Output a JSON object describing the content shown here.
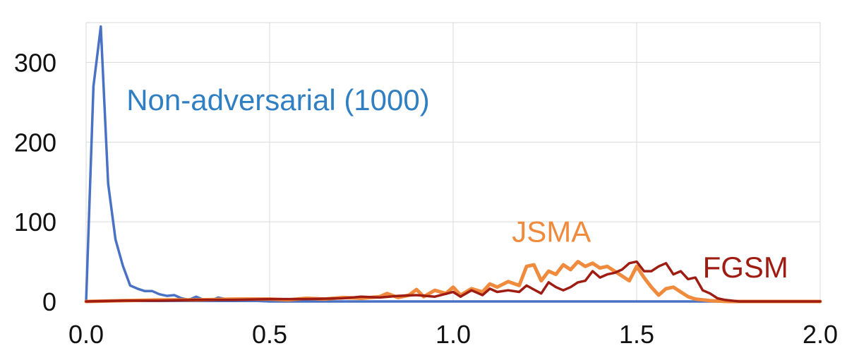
{
  "chart_data": {
    "type": "line",
    "title": "",
    "xlabel": "",
    "ylabel": "",
    "xlim": [
      0.0,
      2.0
    ],
    "ylim": [
      0,
      350
    ],
    "x_ticks": [
      0.0,
      0.5,
      1.0,
      1.5,
      2.0
    ],
    "x_tick_labels": [
      "0.0",
      "0.5",
      "1.0",
      "1.5",
      "2.0"
    ],
    "y_ticks": [
      0,
      100,
      200,
      300
    ],
    "y_tick_labels": [
      "0",
      "100",
      "200",
      "300"
    ],
    "grid": true,
    "legend": "none",
    "series": [
      {
        "name": "Non-adversarial (1000)",
        "color": "#4a72c4",
        "x": [
          0.0,
          0.02,
          0.04,
          0.06,
          0.08,
          0.1,
          0.12,
          0.14,
          0.16,
          0.18,
          0.2,
          0.22,
          0.24,
          0.26,
          0.28,
          0.3,
          0.32,
          0.34,
          0.36,
          0.38,
          0.4,
          0.45,
          0.5,
          0.6,
          0.7,
          0.8,
          0.9,
          1.0,
          1.2,
          1.4,
          1.6,
          1.8,
          2.0
        ],
        "y": [
          0,
          270,
          345,
          148,
          78,
          45,
          20,
          16,
          13,
          13,
          9,
          7,
          8,
          4,
          2,
          6,
          2,
          1,
          5,
          3,
          1,
          1,
          0,
          0,
          0,
          0,
          0,
          0,
          0,
          0,
          0,
          0,
          0
        ]
      },
      {
        "name": "JSMA",
        "color": "#f08a3c",
        "x": [
          0.0,
          0.1,
          0.2,
          0.3,
          0.4,
          0.5,
          0.55,
          0.6,
          0.65,
          0.7,
          0.75,
          0.8,
          0.82,
          0.85,
          0.88,
          0.9,
          0.92,
          0.95,
          0.98,
          1.0,
          1.02,
          1.05,
          1.08,
          1.1,
          1.12,
          1.15,
          1.18,
          1.2,
          1.22,
          1.24,
          1.26,
          1.28,
          1.3,
          1.32,
          1.34,
          1.36,
          1.38,
          1.4,
          1.42,
          1.44,
          1.46,
          1.48,
          1.5,
          1.52,
          1.54,
          1.56,
          1.58,
          1.6,
          1.62,
          1.64,
          1.66,
          1.68,
          1.7,
          1.75,
          1.8,
          1.9,
          2.0
        ],
        "y": [
          0,
          1,
          2,
          2,
          3,
          3,
          2,
          4,
          3,
          5,
          4,
          6,
          10,
          5,
          8,
          15,
          6,
          14,
          10,
          18,
          8,
          16,
          12,
          22,
          18,
          25,
          20,
          44,
          46,
          26,
          38,
          34,
          46,
          40,
          50,
          44,
          48,
          42,
          44,
          38,
          32,
          26,
          44,
          30,
          18,
          8,
          16,
          18,
          12,
          6,
          3,
          2,
          1,
          0,
          0,
          0,
          0
        ]
      },
      {
        "name": "FGSM",
        "color": "#9e1c12",
        "x": [
          0.0,
          0.1,
          0.2,
          0.3,
          0.4,
          0.5,
          0.6,
          0.7,
          0.75,
          0.8,
          0.85,
          0.9,
          0.95,
          1.0,
          1.02,
          1.05,
          1.08,
          1.1,
          1.12,
          1.15,
          1.18,
          1.2,
          1.22,
          1.24,
          1.26,
          1.28,
          1.3,
          1.32,
          1.34,
          1.36,
          1.38,
          1.4,
          1.42,
          1.44,
          1.46,
          1.48,
          1.5,
          1.52,
          1.54,
          1.56,
          1.58,
          1.6,
          1.62,
          1.64,
          1.66,
          1.68,
          1.7,
          1.72,
          1.74,
          1.76,
          1.78,
          1.8,
          1.9,
          2.0
        ],
        "y": [
          0,
          1,
          1,
          2,
          2,
          3,
          3,
          4,
          6,
          5,
          7,
          8,
          6,
          12,
          6,
          14,
          8,
          16,
          12,
          14,
          12,
          20,
          15,
          10,
          24,
          18,
          14,
          18,
          24,
          26,
          38,
          30,
          34,
          36,
          40,
          48,
          50,
          38,
          38,
          44,
          48,
          34,
          38,
          28,
          30,
          14,
          10,
          4,
          2,
          1,
          0,
          0,
          0,
          0
        ]
      }
    ],
    "annotations": [
      {
        "text": "Non-adversarial (1000)",
        "x": 0.11,
        "y": 240,
        "color": "#2f7fc2"
      },
      {
        "text": "JSMA",
        "x": 1.16,
        "y": 75,
        "color": "#f08a3c"
      },
      {
        "text": "FGSM",
        "x": 1.68,
        "y": 30,
        "color": "#9e1c12"
      }
    ]
  }
}
